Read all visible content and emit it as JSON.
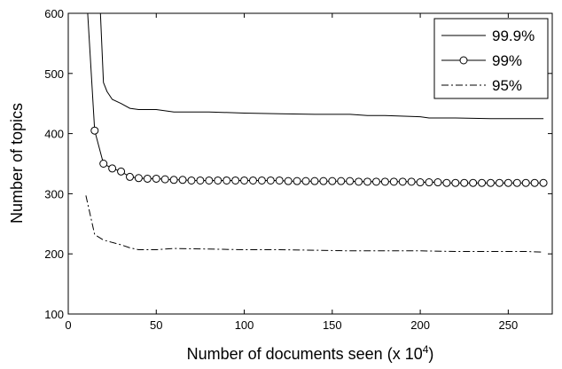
{
  "chart_data": {
    "type": "line",
    "title": "",
    "xlabel": "Number of documents seen (x 10",
    "xlabel_superscript": "4",
    "xlabel_suffix": ")",
    "ylabel": "Number of topics",
    "xlim": [
      0,
      275
    ],
    "ylim": [
      100,
      600
    ],
    "x_ticks": [
      0,
      50,
      100,
      150,
      200,
      250
    ],
    "y_ticks": [
      100,
      200,
      300,
      400,
      500,
      600
    ],
    "grid": false,
    "legend_position": "top-right",
    "series": [
      {
        "name": "99.9%",
        "style": "solid",
        "marker": "none",
        "color": "#000000",
        "points": [
          [
            10,
            650
          ],
          [
            15,
            650
          ],
          [
            18,
            620
          ],
          [
            20,
            485
          ],
          [
            22,
            470
          ],
          [
            25,
            457
          ],
          [
            30,
            450
          ],
          [
            35,
            442
          ],
          [
            40,
            440
          ],
          [
            50,
            440
          ],
          [
            60,
            436
          ],
          [
            80,
            436
          ],
          [
            100,
            434
          ],
          [
            120,
            433
          ],
          [
            140,
            432
          ],
          [
            160,
            432
          ],
          [
            170,
            430
          ],
          [
            180,
            430
          ],
          [
            200,
            428
          ],
          [
            205,
            426
          ],
          [
            220,
            426
          ],
          [
            240,
            425
          ],
          [
            260,
            425
          ],
          [
            270,
            425
          ]
        ]
      },
      {
        "name": "99%",
        "style": "solid",
        "marker": "circle",
        "color": "#000000",
        "points": [
          [
            10,
            650
          ],
          [
            15,
            405
          ],
          [
            20,
            350
          ],
          [
            25,
            342
          ],
          [
            30,
            337
          ],
          [
            35,
            328
          ],
          [
            40,
            326
          ],
          [
            45,
            325
          ],
          [
            50,
            325
          ],
          [
            55,
            324
          ],
          [
            60,
            323
          ],
          [
            65,
            323
          ],
          [
            70,
            322
          ],
          [
            75,
            322
          ],
          [
            80,
            322
          ],
          [
            85,
            322
          ],
          [
            90,
            322
          ],
          [
            95,
            322
          ],
          [
            100,
            322
          ],
          [
            105,
            322
          ],
          [
            110,
            322
          ],
          [
            115,
            322
          ],
          [
            120,
            322
          ],
          [
            125,
            321
          ],
          [
            130,
            321
          ],
          [
            135,
            321
          ],
          [
            140,
            321
          ],
          [
            145,
            321
          ],
          [
            150,
            321
          ],
          [
            155,
            321
          ],
          [
            160,
            321
          ],
          [
            165,
            320
          ],
          [
            170,
            320
          ],
          [
            175,
            320
          ],
          [
            180,
            320
          ],
          [
            185,
            320
          ],
          [
            190,
            320
          ],
          [
            195,
            320
          ],
          [
            200,
            319
          ],
          [
            205,
            319
          ],
          [
            210,
            319
          ],
          [
            215,
            318
          ],
          [
            220,
            318
          ],
          [
            225,
            318
          ],
          [
            230,
            318
          ],
          [
            235,
            318
          ],
          [
            240,
            318
          ],
          [
            245,
            318
          ],
          [
            250,
            318
          ],
          [
            255,
            318
          ],
          [
            260,
            318
          ],
          [
            265,
            318
          ],
          [
            270,
            318
          ]
        ]
      },
      {
        "name": "95%",
        "style": "dashdot",
        "marker": "none",
        "color": "#000000",
        "points": [
          [
            10,
            297
          ],
          [
            15,
            232
          ],
          [
            20,
            223
          ],
          [
            25,
            219
          ],
          [
            30,
            215
          ],
          [
            35,
            210
          ],
          [
            40,
            207
          ],
          [
            50,
            207
          ],
          [
            60,
            209
          ],
          [
            80,
            208
          ],
          [
            100,
            207
          ],
          [
            120,
            207
          ],
          [
            140,
            206
          ],
          [
            160,
            205
          ],
          [
            180,
            205
          ],
          [
            200,
            205
          ],
          [
            220,
            204
          ],
          [
            240,
            204
          ],
          [
            260,
            204
          ],
          [
            270,
            203
          ]
        ]
      }
    ]
  }
}
